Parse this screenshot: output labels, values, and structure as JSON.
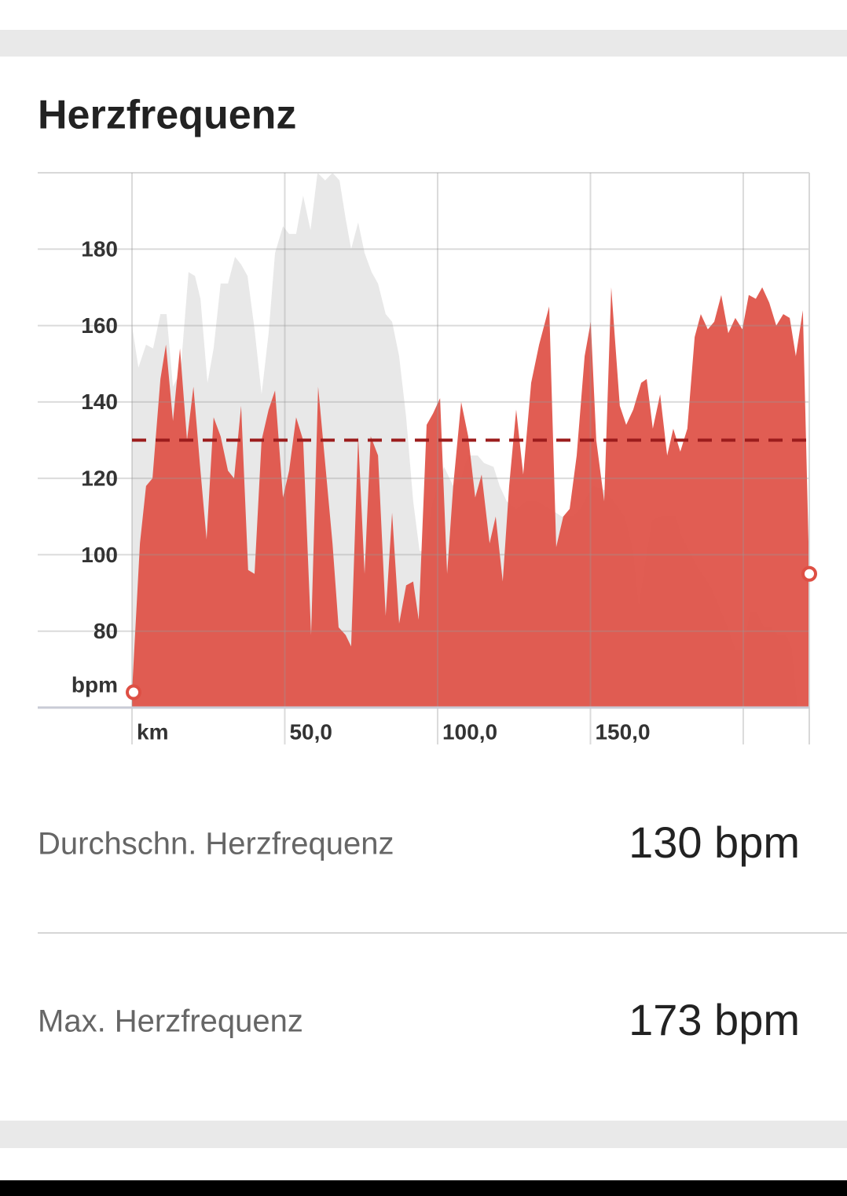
{
  "header": {
    "title": "Herzfrequenz"
  },
  "chart_data": {
    "type": "area",
    "y_unit": "bpm",
    "xlim": [
      0,
      221.6
    ],
    "ylim": [
      60,
      200
    ],
    "xticks": [
      {
        "value": 0,
        "label": "km"
      },
      {
        "value": 50,
        "label": "50,0"
      },
      {
        "value": 100,
        "label": "100,0"
      },
      {
        "value": 150,
        "label": "150,0"
      },
      {
        "value": 200,
        "label": null
      }
    ],
    "yticks": [
      80,
      100,
      120,
      140,
      160,
      180
    ],
    "grid": true,
    "average": 130,
    "average_color": "#9b1c1c",
    "series": [
      {
        "color": "#e8e8e8",
        "x": [
          0,
          2.1,
          4.6,
          6.9,
          9.3,
          11.3,
          13.4,
          15.9,
          18.5,
          20.6,
          22.4,
          24.7,
          26.7,
          29.0,
          31.4,
          33.7,
          35.7,
          37.8,
          40.1,
          42.4,
          44.7,
          46.8,
          49.4,
          51.4,
          53.7,
          56.0,
          58.4,
          60.7,
          63.2,
          65.6,
          67.9,
          69.9,
          71.7,
          74.0,
          76.1,
          78.4,
          80.5,
          83.0,
          85.1,
          87.4,
          89.7,
          92.0,
          94.1,
          95.6,
          98.5,
          102.1,
          105.1,
          107.7,
          110.0,
          113.1,
          115.2,
          118.3,
          120.3,
          122.6,
          125.7,
          129.0,
          132.6,
          136.8,
          140.6,
          144.0,
          146.8,
          150.7,
          154.5,
          157.6,
          161.2,
          163.9,
          165.8,
          167.8,
          170.2,
          172.8,
          175.6,
          177.9,
          179.7,
          182.3,
          184.8,
          187.4,
          189.7,
          192.3,
          194.9,
          197.4,
          200.0,
          202.3,
          204.4,
          206.7,
          209.0,
          211.3,
          213.9,
          215.7,
          217.7,
          221.6
        ],
        "values": [
          160,
          149,
          155,
          154,
          163,
          163,
          144,
          148,
          174,
          173,
          167,
          145,
          154,
          171,
          171,
          178,
          176,
          173,
          159,
          142,
          158,
          179,
          186,
          184,
          184,
          194,
          185,
          200,
          198,
          200,
          198,
          188,
          180,
          187,
          179,
          174,
          171,
          163,
          161,
          152,
          136,
          114,
          101,
          101,
          114,
          123,
          118,
          120,
          126,
          126,
          124,
          123,
          118,
          114,
          112,
          114,
          114,
          112,
          110,
          110,
          112,
          118,
          117,
          114,
          110,
          101,
          86,
          97,
          109,
          110,
          110,
          110,
          105,
          101,
          97,
          94,
          91,
          86,
          81,
          75,
          75,
          85,
          85,
          81,
          81,
          79,
          79,
          76,
          60,
          60
        ]
      },
      {
        "color": "#de4f44",
        "x": [
          0,
          2.6,
          4.6,
          6.7,
          9.3,
          11.1,
          13.4,
          15.7,
          18.0,
          20.1,
          22.4,
          24.4,
          26.7,
          29.0,
          31.4,
          33.4,
          35.7,
          38.0,
          40.1,
          42.4,
          44.7,
          46.8,
          49.4,
          51.4,
          53.7,
          56.0,
          58.6,
          60.9,
          63.2,
          65.6,
          67.6,
          69.9,
          71.7,
          74.0,
          76.1,
          78.1,
          80.5,
          83.0,
          85.1,
          87.4,
          89.7,
          92.0,
          93.8,
          96.4,
          98.5,
          100.8,
          103.1,
          105.1,
          107.7,
          110.0,
          112.3,
          114.4,
          117.0,
          119.0,
          121.3,
          123.4,
          125.7,
          128.0,
          130.6,
          133.2,
          136.5,
          138.8,
          141.1,
          143.2,
          145.5,
          148.1,
          150.1,
          151.9,
          154.5,
          156.8,
          159.6,
          161.7,
          164.0,
          166.6,
          168.4,
          170.4,
          172.8,
          175.1,
          177.1,
          179.4,
          181.7,
          184.1,
          186.1,
          188.4,
          190.5,
          192.8,
          195.1,
          197.4,
          199.7,
          201.8,
          204.1,
          206.2,
          208.5,
          210.8,
          213.1,
          215.2,
          217.2,
          219.5,
          221.6
        ],
        "values": [
          64,
          103,
          118,
          120,
          146,
          155,
          135,
          154,
          130,
          144,
          122,
          104,
          136,
          131,
          122,
          120,
          139,
          96,
          95,
          130,
          138,
          143,
          115,
          122,
          136,
          130,
          79,
          144,
          124,
          103,
          81,
          79,
          76,
          131,
          95,
          131,
          126,
          84,
          111,
          82,
          92,
          93,
          83,
          134,
          137,
          141,
          95,
          118,
          140,
          131,
          115,
          121,
          103,
          110,
          93,
          118,
          138,
          121,
          145,
          155,
          165,
          102,
          110,
          112,
          126,
          152,
          161,
          130,
          114,
          170,
          139,
          134,
          138,
          145,
          146,
          133,
          142,
          126,
          133,
          127,
          133,
          157,
          163,
          159,
          161,
          168,
          158,
          162,
          159,
          168,
          167,
          170,
          166,
          160,
          163,
          162,
          152,
          164,
          95
        ]
      }
    ]
  },
  "stats": [
    {
      "label": "Durchschn. Herzfrequenz",
      "value": "130 bpm"
    },
    {
      "label": "Max. Herzfrequenz",
      "value": "173 bpm"
    }
  ]
}
